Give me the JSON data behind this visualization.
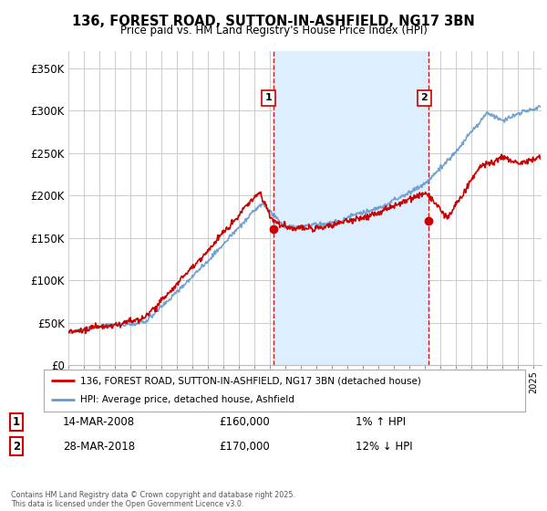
{
  "title": "136, FOREST ROAD, SUTTON-IN-ASHFIELD, NG17 3BN",
  "subtitle": "Price paid vs. HM Land Registry's House Price Index (HPI)",
  "ylim": [
    0,
    370000
  ],
  "yticks": [
    0,
    50000,
    100000,
    150000,
    200000,
    250000,
    300000,
    350000
  ],
  "ytick_labels": [
    "£0",
    "£50K",
    "£100K",
    "£150K",
    "£200K",
    "£250K",
    "£300K",
    "£350K"
  ],
  "xmin": 1995.0,
  "xmax": 2025.5,
  "sale1_x": 2008.2,
  "sale1_y": 160000,
  "sale1_label": "1",
  "sale2_x": 2018.24,
  "sale2_y": 170000,
  "sale2_label": "2",
  "hpi_line_color": "#6699cc",
  "shade_color": "#ddeeff",
  "price_color": "#cc0000",
  "vline_color": "#cc0000",
  "background_color": "#ffffff",
  "grid_color": "#cccccc",
  "legend_label_price": "136, FOREST ROAD, SUTTON-IN-ASHFIELD, NG17 3BN (detached house)",
  "legend_label_hpi": "HPI: Average price, detached house, Ashfield",
  "annot1_date": "14-MAR-2008",
  "annot1_price": "£160,000",
  "annot1_hpi": "1% ↑ HPI",
  "annot2_date": "28-MAR-2018",
  "annot2_price": "£170,000",
  "annot2_hpi": "12% ↓ HPI",
  "footnote": "Contains HM Land Registry data © Crown copyright and database right 2025.\nThis data is licensed under the Open Government Licence v3.0."
}
